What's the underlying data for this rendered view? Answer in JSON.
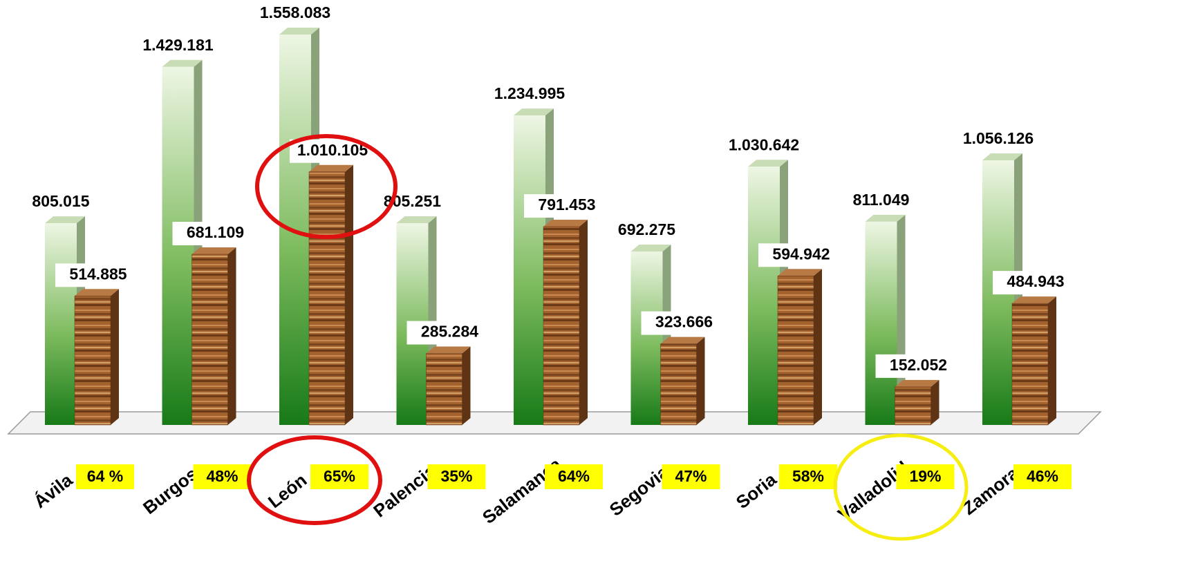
{
  "chart_data": {
    "type": "bar3d",
    "categories": [
      "Ávila",
      "Burgos",
      "León",
      "Palencia",
      "Salamanca",
      "Segovia",
      "Soria",
      "Valladolid",
      "Zamora"
    ],
    "series": [
      {
        "color": "#2e8b2e",
        "values": [
          805015,
          1429181,
          1558083,
          805251,
          1234995,
          692275,
          1030642,
          811049,
          1056126
        ],
        "value_labels": [
          "805.015",
          "1.429.181",
          "1.558.083",
          "805.251",
          "1.234.995",
          "692.275",
          "1.030.642",
          "811.049",
          "1.056.126"
        ]
      },
      {
        "color": "#9a5a2a",
        "values": [
          514885,
          681109,
          1010105,
          285284,
          791453,
          323666,
          594942,
          152052,
          484943
        ],
        "value_labels": [
          "514.885",
          "681.109",
          "1.010.105",
          "285.284",
          "791.453",
          "323.666",
          "594.942",
          "152.052",
          "484.943"
        ]
      }
    ],
    "annotations": [
      "64 %",
      "48%",
      "65%",
      "35%",
      "64%",
      "47%",
      "58%",
      "19%",
      "46%"
    ]
  }
}
